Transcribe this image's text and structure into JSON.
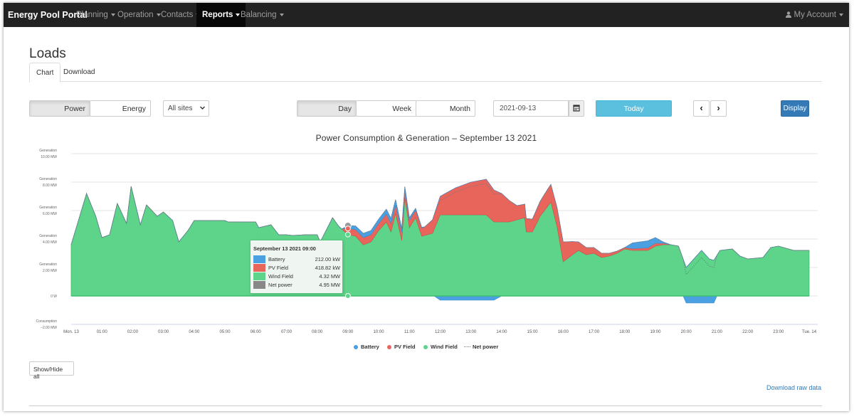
{
  "navbar": {
    "brand": "Energy Pool Portal",
    "menu": [
      {
        "label": "Planning"
      },
      {
        "label": "Operation"
      },
      {
        "label": "Contacts"
      },
      {
        "label": "Reports"
      },
      {
        "label": "Balancing"
      }
    ],
    "account": "My Account",
    "active": "Reports"
  },
  "page": {
    "title": "Loads",
    "tabs": [
      "Chart",
      "Download"
    ],
    "active_tab": "Chart"
  },
  "controls": {
    "power": "Power",
    "energy": "Energy",
    "sites": "All sites",
    "day": "Day",
    "week": "Week",
    "month": "Month",
    "date": "2021-09-13",
    "today": "Today",
    "prev": "‹",
    "next": "›",
    "display": "Display"
  },
  "chart_data": {
    "type": "area",
    "title": "Power Consumption & Generation – September 13 2021",
    "y_unit": "MW",
    "ylim": [
      -2,
      10
    ],
    "yticks": [
      {
        "value": 10,
        "label": "Generation 10.00 MW"
      },
      {
        "value": 8,
        "label": "Generation 8.00 MW"
      },
      {
        "value": 6,
        "label": "Generation 6.00 MW"
      },
      {
        "value": 4,
        "label": "Generation 4.00 MW"
      },
      {
        "value": 2,
        "label": "Generation 2.00 MW"
      },
      {
        "value": 0,
        "label": "0 W"
      },
      {
        "value": -2,
        "label": "Consumption −2.00 MW"
      }
    ],
    "xlim": [
      0,
      24
    ],
    "xticks": [
      {
        "value": 0,
        "label": "Mon. 13"
      },
      {
        "value": 1,
        "label": "01:00"
      },
      {
        "value": 2,
        "label": "02:00"
      },
      {
        "value": 3,
        "label": "03:00"
      },
      {
        "value": 4,
        "label": "04:00"
      },
      {
        "value": 5,
        "label": "05:00"
      },
      {
        "value": 6,
        "label": "06:00"
      },
      {
        "value": 7,
        "label": "07:00"
      },
      {
        "value": 8,
        "label": "08:00"
      },
      {
        "value": 9,
        "label": "09:00"
      },
      {
        "value": 10,
        "label": "10:00"
      },
      {
        "value": 11,
        "label": "11:00"
      },
      {
        "value": 12,
        "label": "12:00"
      },
      {
        "value": 13,
        "label": "13:00"
      },
      {
        "value": 14,
        "label": "14:00"
      },
      {
        "value": 15,
        "label": "15:00"
      },
      {
        "value": 16,
        "label": "16:00"
      },
      {
        "value": 17,
        "label": "17:00"
      },
      {
        "value": 18,
        "label": "18:00"
      },
      {
        "value": 19,
        "label": "19:00"
      },
      {
        "value": 20,
        "label": "20:00"
      },
      {
        "value": 21,
        "label": "21:00"
      },
      {
        "value": 22,
        "label": "22:00"
      },
      {
        "value": 23,
        "label": "23:00"
      },
      {
        "value": 24,
        "label": "Tue. 14"
      }
    ],
    "grid": true,
    "legend_position": "bottom-center",
    "series": [
      {
        "name": "Wind Field",
        "color": "#5ed48a",
        "points": [
          [
            0,
            3.6
          ],
          [
            0.5,
            7.2
          ],
          [
            0.8,
            5.6
          ],
          [
            1.0,
            4.1
          ],
          [
            1.25,
            4.3
          ],
          [
            1.5,
            6.5
          ],
          [
            1.8,
            5.1
          ],
          [
            1.95,
            7.7
          ],
          [
            2.25,
            5.0
          ],
          [
            2.45,
            6.4
          ],
          [
            2.8,
            5.6
          ],
          [
            3.0,
            5.9
          ],
          [
            3.3,
            5.3
          ],
          [
            3.5,
            3.8
          ],
          [
            3.8,
            4.6
          ],
          [
            4.0,
            5.3
          ],
          [
            5.0,
            5.3
          ],
          [
            5.1,
            5.2
          ],
          [
            6.0,
            5.2
          ],
          [
            6.1,
            4.8
          ],
          [
            6.5,
            5.0
          ],
          [
            6.75,
            4.3
          ],
          [
            7.0,
            4.3
          ],
          [
            7.2,
            4.25
          ],
          [
            7.6,
            4.3
          ],
          [
            8.0,
            4.3
          ],
          [
            8.1,
            3.8
          ],
          [
            8.5,
            5.5
          ],
          [
            8.7,
            4.9
          ],
          [
            9.0,
            4.32
          ],
          [
            9.25,
            4.2
          ],
          [
            9.5,
            3.6
          ],
          [
            9.75,
            3.8
          ],
          [
            10.0,
            4.6
          ],
          [
            10.25,
            5.2
          ],
          [
            10.4,
            4.5
          ],
          [
            10.55,
            5.8
          ],
          [
            10.75,
            3.9
          ],
          [
            10.85,
            6.9
          ],
          [
            11.0,
            4.8
          ],
          [
            11.2,
            5.5
          ],
          [
            11.4,
            4.2
          ],
          [
            11.75,
            4.4
          ],
          [
            12.0,
            5.7
          ],
          [
            13.5,
            5.7
          ],
          [
            13.75,
            5.2
          ],
          [
            14.25,
            5.2
          ],
          [
            14.75,
            5.5
          ],
          [
            14.8,
            4.5
          ],
          [
            15.0,
            4.5
          ],
          [
            15.25,
            5.6
          ],
          [
            15.6,
            6.6
          ],
          [
            15.8,
            4.9
          ],
          [
            16.0,
            2.4
          ],
          [
            16.3,
            2.9
          ],
          [
            16.5,
            3.2
          ],
          [
            16.75,
            2.9
          ],
          [
            17.0,
            3.0
          ],
          [
            17.25,
            2.7
          ],
          [
            17.5,
            2.8
          ],
          [
            17.75,
            3.0
          ],
          [
            18.0,
            3.3
          ],
          [
            18.25,
            3.2
          ],
          [
            18.75,
            3.2
          ],
          [
            19.0,
            3.5
          ],
          [
            19.25,
            3.6
          ],
          [
            19.5,
            3.6
          ],
          [
            19.75,
            3.5
          ],
          [
            20.0,
            2.0
          ],
          [
            20.25,
            2.6
          ],
          [
            20.5,
            3.2
          ],
          [
            20.75,
            2.6
          ],
          [
            20.9,
            2.5
          ],
          [
            21.1,
            3.2
          ],
          [
            21.5,
            3.3
          ],
          [
            21.75,
            2.8
          ],
          [
            22.0,
            2.6
          ],
          [
            22.5,
            2.7
          ],
          [
            22.75,
            3.4
          ],
          [
            23.0,
            3.5
          ],
          [
            23.5,
            3.2
          ],
          [
            24.0,
            3.2
          ]
        ]
      },
      {
        "name": "PV Field",
        "color": "#e8655c",
        "points": [
          [
            0,
            0
          ],
          [
            8.8,
            0
          ],
          [
            9.0,
            0.42
          ],
          [
            9.5,
            0.5
          ],
          [
            10.0,
            0.5
          ],
          [
            10.5,
            0.6
          ],
          [
            11.0,
            0.5
          ],
          [
            11.5,
            0.6
          ],
          [
            12.0,
            1.3
          ],
          [
            12.5,
            1.9
          ],
          [
            13.0,
            2.3
          ],
          [
            13.5,
            2.5
          ],
          [
            14.0,
            2.0
          ],
          [
            14.5,
            1.0
          ],
          [
            15.0,
            0.9
          ],
          [
            15.5,
            1.2
          ],
          [
            16.0,
            1.4
          ],
          [
            16.5,
            0.6
          ],
          [
            17.0,
            0.4
          ],
          [
            17.5,
            0.2
          ],
          [
            18.0,
            0.1
          ],
          [
            19.0,
            0.2
          ],
          [
            19.5,
            0
          ],
          [
            24,
            0
          ]
        ]
      },
      {
        "name": "Battery",
        "color": "#4aa0e0",
        "points": [
          [
            0,
            0
          ],
          [
            8.8,
            0
          ],
          [
            9.0,
            0.21
          ],
          [
            9.5,
            0.3
          ],
          [
            10.0,
            0.3
          ],
          [
            10.5,
            0.4
          ],
          [
            11.0,
            0.2
          ],
          [
            11.5,
            0
          ],
          [
            11.8,
            0
          ],
          [
            12.0,
            -0.3
          ],
          [
            12.5,
            -0.3
          ],
          [
            13.0,
            -0.3
          ],
          [
            13.75,
            -0.3
          ],
          [
            14.0,
            0
          ],
          [
            18.0,
            0
          ],
          [
            18.25,
            0.4
          ],
          [
            18.75,
            0.5
          ],
          [
            19.0,
            0.4
          ],
          [
            19.25,
            0.1
          ],
          [
            19.5,
            0
          ],
          [
            19.9,
            0
          ],
          [
            20.0,
            -0.5
          ],
          [
            20.5,
            -0.5
          ],
          [
            20.9,
            -0.5
          ],
          [
            21.0,
            0
          ],
          [
            24,
            0
          ]
        ]
      },
      {
        "name": "Net power",
        "color": "#888888",
        "style": "dotted"
      }
    ],
    "tooltip": {
      "title": "September 13 2021 09:00",
      "rows": [
        {
          "name": "Battery",
          "value": "212.00 kW",
          "color": "#4aa0e0"
        },
        {
          "name": "PV Field",
          "value": "418.82 kW",
          "color": "#e8655c"
        },
        {
          "name": "Wind Field",
          "value": "4.32 MW",
          "color": "#5ed48a"
        },
        {
          "name": "Net power",
          "value": "4.95 MW",
          "color": "#888888"
        }
      ],
      "x": 9
    }
  },
  "footer": {
    "show_hide": "Show/Hide all",
    "download_raw": "Download raw data"
  }
}
